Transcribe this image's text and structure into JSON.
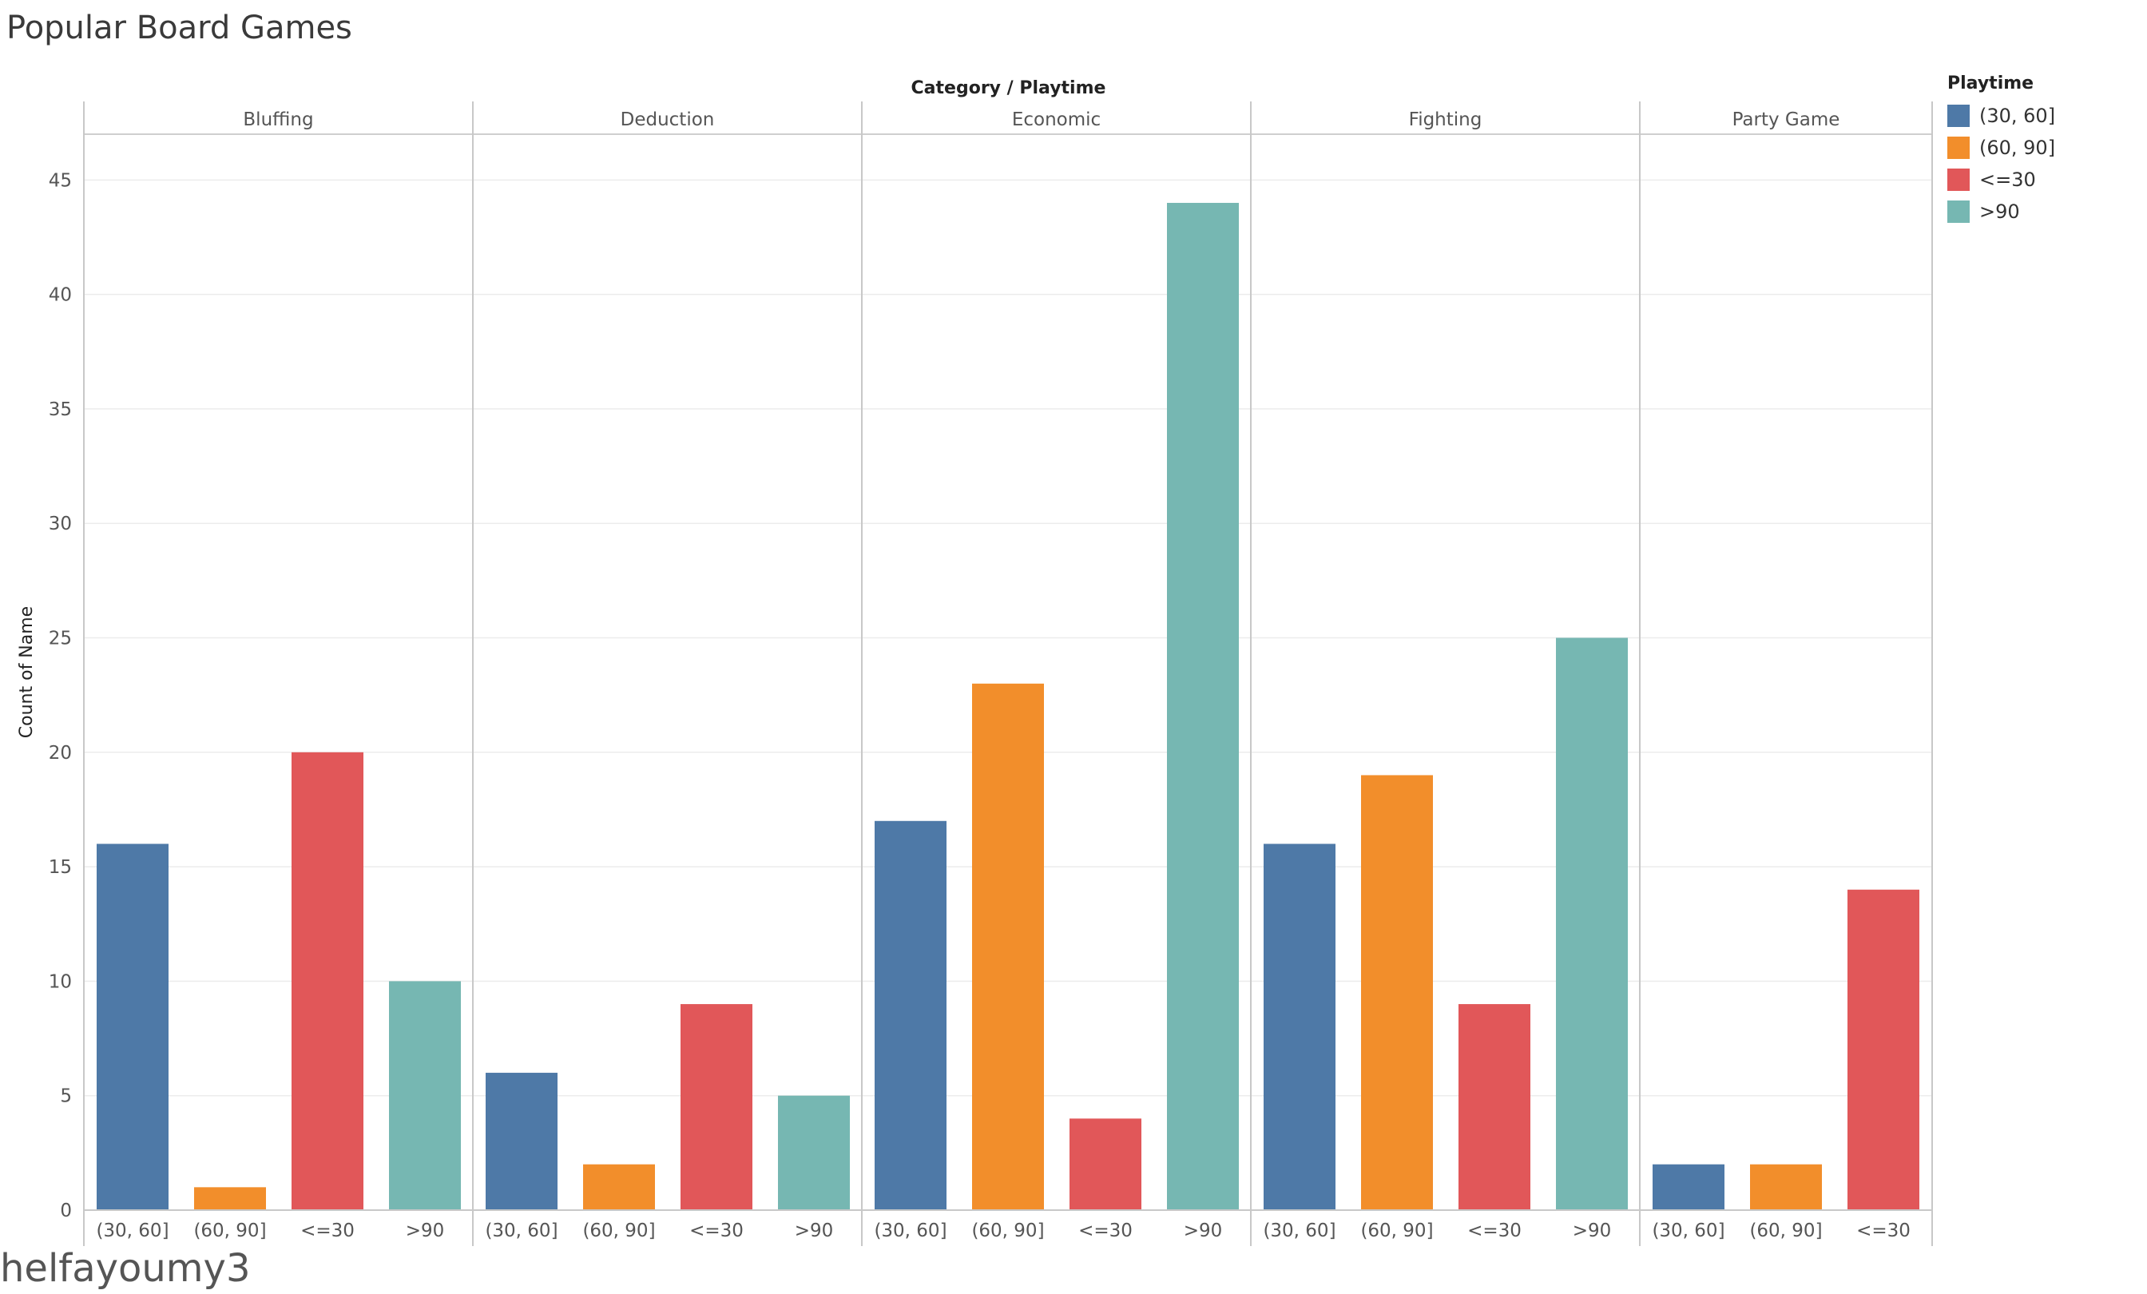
{
  "title": "Popular Board Games",
  "credit": "helfayoumy3",
  "chart_data": {
    "type": "bar",
    "title": "Popular Board Games",
    "column_header": "Category / Playtime",
    "ylabel": "Count of Name",
    "ylim": [
      0,
      47
    ],
    "yticks": [
      0,
      5,
      10,
      15,
      20,
      25,
      30,
      35,
      40,
      45
    ],
    "grid": true,
    "legend": {
      "title": "Playtime",
      "position": "right"
    },
    "series_colors": {
      "(30, 60]": "#4e79a7",
      "(60, 90]": "#f28e2b",
      "<=30": "#e15759",
      ">90": "#76b7b2"
    },
    "panels": [
      {
        "category": "Bluffing",
        "bars": [
          {
            "playtime": "(30, 60]",
            "value": 16
          },
          {
            "playtime": "(60, 90]",
            "value": 1
          },
          {
            "playtime": "<=30",
            "value": 20
          },
          {
            "playtime": ">90",
            "value": 10
          }
        ]
      },
      {
        "category": "Deduction",
        "bars": [
          {
            "playtime": "(30, 60]",
            "value": 6
          },
          {
            "playtime": "(60, 90]",
            "value": 2
          },
          {
            "playtime": "<=30",
            "value": 9
          },
          {
            "playtime": ">90",
            "value": 5
          }
        ]
      },
      {
        "category": "Economic",
        "bars": [
          {
            "playtime": "(30, 60]",
            "value": 17
          },
          {
            "playtime": "(60, 90]",
            "value": 23
          },
          {
            "playtime": "<=30",
            "value": 4
          },
          {
            "playtime": ">90",
            "value": 44
          }
        ]
      },
      {
        "category": "Fighting",
        "bars": [
          {
            "playtime": "(30, 60]",
            "value": 16
          },
          {
            "playtime": "(60, 90]",
            "value": 19
          },
          {
            "playtime": "<=30",
            "value": 9
          },
          {
            "playtime": ">90",
            "value": 25
          }
        ]
      },
      {
        "category": "Party Game",
        "bars": [
          {
            "playtime": "(30, 60]",
            "value": 2
          },
          {
            "playtime": "(60, 90]",
            "value": 2
          },
          {
            "playtime": "<=30",
            "value": 14
          }
        ]
      }
    ]
  },
  "legend_items": [
    {
      "label": "(30, 60]",
      "color": "#4e79a7"
    },
    {
      "label": "(60, 90]",
      "color": "#f28e2b"
    },
    {
      "label": "<=30",
      "color": "#e15759"
    },
    {
      "label": ">90",
      "color": "#76b7b2"
    }
  ]
}
